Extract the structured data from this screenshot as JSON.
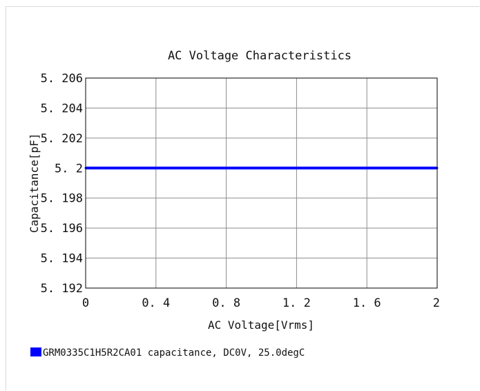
{
  "chart_data": {
    "type": "line",
    "title": "AC Voltage Characteristics",
    "xlabel": "AC Voltage[Vrms]",
    "ylabel": "Capacitance[pF]",
    "xlim": [
      0,
      2
    ],
    "ylim": [
      5.192,
      5.206
    ],
    "x_ticks": [
      0,
      0.4,
      0.8,
      1.2,
      1.6,
      2
    ],
    "x_tick_labels": [
      "0",
      "0. 4",
      "0. 8",
      "1. 2",
      "1. 6",
      "2"
    ],
    "y_ticks": [
      5.192,
      5.194,
      5.196,
      5.198,
      5.2,
      5.202,
      5.204,
      5.206
    ],
    "y_tick_labels": [
      "5. 192",
      "5. 194",
      "5. 196",
      "5. 198",
      "5. 2",
      "5. 202",
      "5. 204",
      "5. 206"
    ],
    "grid": true,
    "legend_position": "bottom-left",
    "series": [
      {
        "name": "GRM0335C1H5R2CA01 capacitance, DC0V, 25.0degC",
        "color": "#0000ff",
        "x": [
          0,
          0.4,
          0.8,
          1.2,
          1.6,
          2
        ],
        "y": [
          5.2,
          5.2,
          5.2,
          5.2,
          5.2,
          5.2
        ]
      }
    ]
  }
}
